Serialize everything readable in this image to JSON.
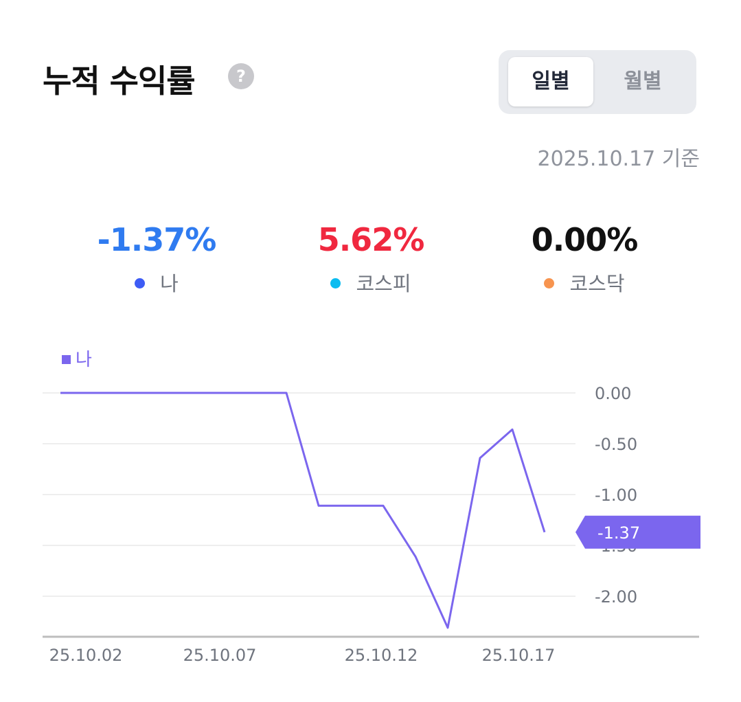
{
  "header": {
    "title": "누적 수익률",
    "help_icon": "question-circle-icon",
    "help_glyph": "?"
  },
  "period_toggle": {
    "options": [
      "일별",
      "월별"
    ],
    "selected": "일별"
  },
  "as_of": "2025.10.17 기준",
  "summary": [
    {
      "value": "-1.37%",
      "label": "나",
      "value_color": "#2f7bf0",
      "dot_color": "#3d5cf5"
    },
    {
      "value": "5.62%",
      "label": "코스피",
      "value_color": "#f0283f",
      "dot_color": "#0bbcf0"
    },
    {
      "value": "0.00%",
      "label": "코스닥",
      "value_color": "#111111",
      "dot_color": "#f7944f"
    }
  ],
  "chart_data": {
    "type": "line",
    "legend": {
      "label": "나",
      "position": "top-left"
    },
    "x": [
      "25.10.02",
      "25.10.03",
      "25.10.04",
      "25.10.05",
      "25.10.06",
      "25.10.07",
      "25.10.08",
      "25.10.09",
      "25.10.10",
      "25.10.11",
      "25.10.12",
      "25.10.13",
      "25.10.14",
      "25.10.15",
      "25.10.16",
      "25.10.17"
    ],
    "x_tick_labels": [
      "25.10.02",
      "25.10.07",
      "25.10.12",
      "25.10.17"
    ],
    "series": [
      {
        "name": "나",
        "color": "#7b66ee",
        "values": [
          0,
          0,
          0,
          0,
          0,
          0,
          0,
          0,
          -1.11,
          -1.11,
          -1.11,
          -1.61,
          -2.31,
          -0.64,
          -0.36,
          -1.37
        ]
      }
    ],
    "y_ticks": [
      "0.00",
      "-0.50",
      "-1.00",
      "-1.50",
      "-2.00"
    ],
    "ylim": [
      -2.4,
      0.1
    ],
    "grid": true,
    "last_value_label": "-1.37"
  }
}
